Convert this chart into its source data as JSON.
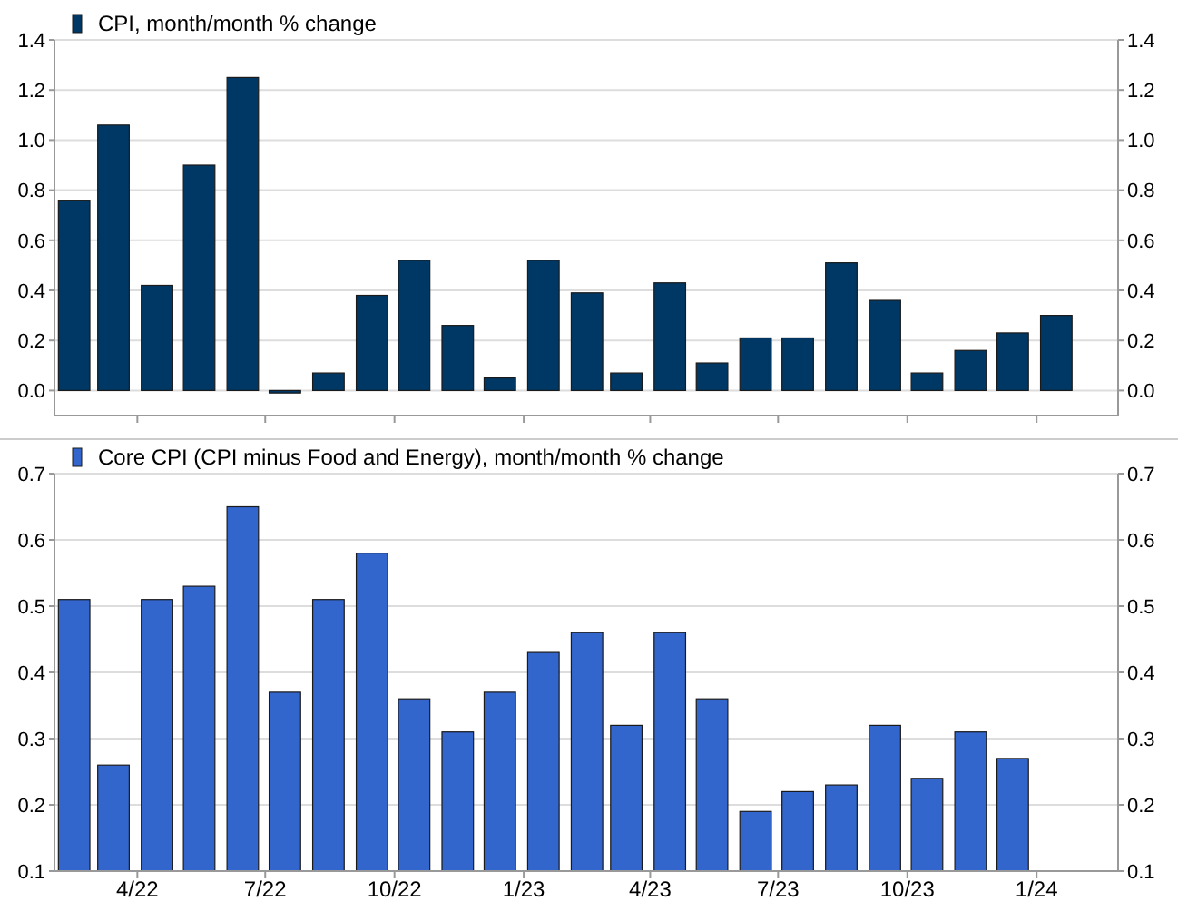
{
  "chart_data": [
    {
      "type": "bar",
      "x": [
        "2022-02-15",
        "2022-03-15",
        "2022-04-15",
        "2022-05-15",
        "2022-06-15",
        "2022-07-15",
        "2022-08-15",
        "2022-09-15",
        "2022-10-15",
        "2022-11-15",
        "2022-12-15",
        "2023-01-15",
        "2023-02-15",
        "2023-03-15",
        "2023-04-15",
        "2023-05-15",
        "2023-06-15",
        "2023-07-15",
        "2023-08-15",
        "2023-09-15",
        "2023-10-15",
        "2023-11-15",
        "2023-12-15",
        "2024-01-15"
      ],
      "series": [
        {
          "name": "CPI, month/month % change",
          "color": "#003865",
          "values": [
            0.76,
            1.06,
            0.42,
            0.9,
            1.25,
            -0.01,
            0.07,
            0.38,
            0.52,
            0.26,
            0.05,
            0.52,
            0.39,
            0.07,
            0.43,
            0.11,
            0.21,
            0.21,
            0.51,
            0.36,
            0.07,
            0.16,
            0.23,
            0.3
          ]
        }
      ],
      "xlim": [
        "2022-02-01",
        "2024-02-28"
      ],
      "xticks": [
        {
          "value": "2022-04",
          "label": null
        },
        {
          "value": "2022-07",
          "label": null
        },
        {
          "value": "2022-10",
          "label": null
        },
        {
          "value": "2023-01",
          "label": null
        },
        {
          "value": "2023-04",
          "label": null
        },
        {
          "value": "2023-07",
          "label": null
        },
        {
          "value": "2023-10",
          "label": null
        },
        {
          "value": "2024-01",
          "label": null
        }
      ],
      "ylim": [
        -0.1,
        1.4
      ],
      "yticks": [
        {
          "value": 0,
          "label": "0.0"
        },
        0.2,
        0.4,
        0.6,
        0.8,
        {
          "value": 1,
          "label": "1.0"
        },
        1.2,
        1.4
      ],
      "y2lim": [
        -0.1,
        1.4
      ],
      "y2ticks": [
        {
          "value": 0,
          "label": "0.0"
        },
        0.2,
        0.4,
        0.6,
        0.8,
        {
          "value": 1,
          "label": "1.0"
        },
        1.2,
        1.4
      ],
      "tick_labels": "y",
      "grid": "y",
      "legend": "top left"
    },
    {
      "type": "bar",
      "x": [
        "2022-02-15",
        "2022-03-15",
        "2022-04-15",
        "2022-05-15",
        "2022-06-15",
        "2022-07-15",
        "2022-08-15",
        "2022-09-15",
        "2022-10-15",
        "2022-11-15",
        "2022-12-15",
        "2023-01-15",
        "2023-02-15",
        "2023-03-15",
        "2023-04-15",
        "2023-05-15",
        "2023-06-15",
        "2023-07-15",
        "2023-08-15",
        "2023-09-15",
        "2023-10-15",
        "2023-11-15",
        "2023-12-15"
      ],
      "series": [
        {
          "name": "Core CPI (CPI minus Food and Energy), month/month % change",
          "color": "#3366cc",
          "values": [
            0.51,
            0.26,
            0.51,
            0.53,
            0.65,
            0.37,
            0.51,
            0.58,
            0.36,
            0.31,
            0.37,
            0.43,
            0.46,
            0.32,
            0.46,
            0.36,
            0.19,
            0.22,
            0.23,
            0.32,
            0.24,
            0.31,
            0.27
          ]
        }
      ],
      "xlim": [
        "2022-02-01",
        "2024-02-28"
      ],
      "xticks": [
        {
          "value": "2022-04",
          "label": "4/22"
        },
        {
          "value": "2022-07",
          "label": "7/22"
        },
        {
          "value": "2022-10",
          "label": "10/22"
        },
        {
          "value": "2023-01",
          "label": "1/23"
        },
        {
          "value": "2023-04",
          "label": "4/23"
        },
        {
          "value": "2023-07",
          "label": "7/23"
        },
        {
          "value": "2023-10",
          "label": "10/23"
        },
        {
          "value": "2024-01",
          "label": "1/24"
        }
      ],
      "ylim": [
        0.1,
        0.7
      ],
      "yticks": [
        0.1,
        0.2,
        0.3,
        0.4,
        0.5,
        0.6,
        0.7
      ],
      "y2lim": [
        0.1,
        0.7
      ],
      "y2ticks": [
        0.1,
        0.2,
        0.3,
        0.4,
        0.5,
        0.6,
        0.7
      ],
      "grid": "y",
      "legend": "top left"
    }
  ]
}
